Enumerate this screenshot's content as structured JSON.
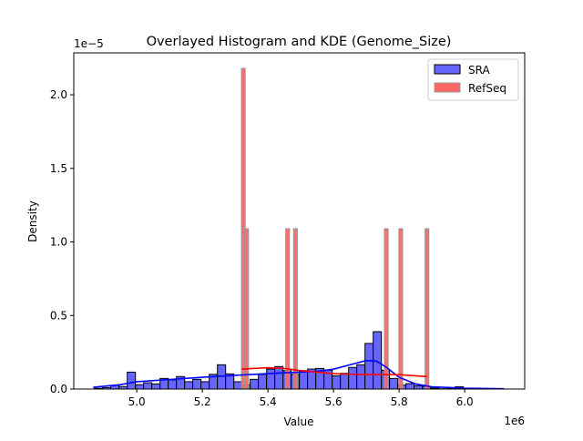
{
  "chart_data": {
    "type": "bar",
    "title": "Overlayed Histogram and KDE (Genome_Size)",
    "xlabel": "Value",
    "ylabel": "Density",
    "x_offset_label": "1e6",
    "y_offset_label": "1e−5",
    "xlim": [
      4.808,
      6.183
    ],
    "ylim": [
      0,
      2.285
    ],
    "x_ticks": [
      5.0,
      5.2,
      5.4,
      5.6,
      5.8,
      6.0
    ],
    "x_tick_labels": [
      "5.0",
      "5.2",
      "5.4",
      "5.6",
      "5.8",
      "6.0"
    ],
    "y_ticks": [
      0,
      0.5,
      1.0,
      1.5,
      2.0
    ],
    "y_tick_labels": [
      "0.0",
      "0.5",
      "1.0",
      "1.5",
      "2.0"
    ],
    "grid": false,
    "legend_position": "top-right",
    "series": [
      {
        "name": "SRA",
        "color": "#6666ff",
        "kde_color": "#0000ff",
        "bin_start": 4.871,
        "bin_width": 0.025,
        "values": [
          0.005,
          0.01,
          0.025,
          0.017,
          0.115,
          0.03,
          0.043,
          0.035,
          0.072,
          0.062,
          0.085,
          0.05,
          0.066,
          0.05,
          0.1,
          0.165,
          0.103,
          0.05,
          0.03,
          0.066,
          0.1,
          0.136,
          0.153,
          0.125,
          0.1,
          0.125,
          0.136,
          0.14,
          0.128,
          0.09,
          0.107,
          0.147,
          0.165,
          0.31,
          0.39,
          0.128,
          0.072,
          0.027,
          0.037,
          0.023,
          0.018,
          0.006,
          0.002,
          0.003,
          0.016,
          0.003
        ],
        "kde": [
          [
            4.867,
            0.012
          ],
          [
            4.95,
            0.03
          ],
          [
            5.0,
            0.05
          ],
          [
            5.1,
            0.065
          ],
          [
            5.2,
            0.08
          ],
          [
            5.3,
            0.093
          ],
          [
            5.4,
            0.105
          ],
          [
            5.45,
            0.11
          ],
          [
            5.5,
            0.115
          ],
          [
            5.55,
            0.12
          ],
          [
            5.6,
            0.135
          ],
          [
            5.65,
            0.165
          ],
          [
            5.7,
            0.194
          ],
          [
            5.73,
            0.19
          ],
          [
            5.76,
            0.15
          ],
          [
            5.8,
            0.08
          ],
          [
            5.85,
            0.035
          ],
          [
            5.9,
            0.015
          ],
          [
            6.0,
            0.006
          ],
          [
            6.12,
            0.002
          ]
        ]
      },
      {
        "name": "RefSeq",
        "color": "#ff6666",
        "kde_color": "#ff0000",
        "bin_width": 0.0115,
        "bars": [
          [
            5.325,
            2.18
          ],
          [
            5.335,
            1.09
          ],
          [
            5.46,
            1.09
          ],
          [
            5.484,
            1.09
          ],
          [
            5.761,
            1.09
          ],
          [
            5.805,
            1.09
          ],
          [
            5.885,
            1.09
          ]
        ],
        "kde": [
          [
            5.32,
            0.136
          ],
          [
            5.4,
            0.145
          ],
          [
            5.45,
            0.14
          ],
          [
            5.5,
            0.125
          ],
          [
            5.6,
            0.105
          ],
          [
            5.7,
            0.098
          ],
          [
            5.8,
            0.098
          ],
          [
            5.885,
            0.085
          ]
        ]
      }
    ]
  }
}
